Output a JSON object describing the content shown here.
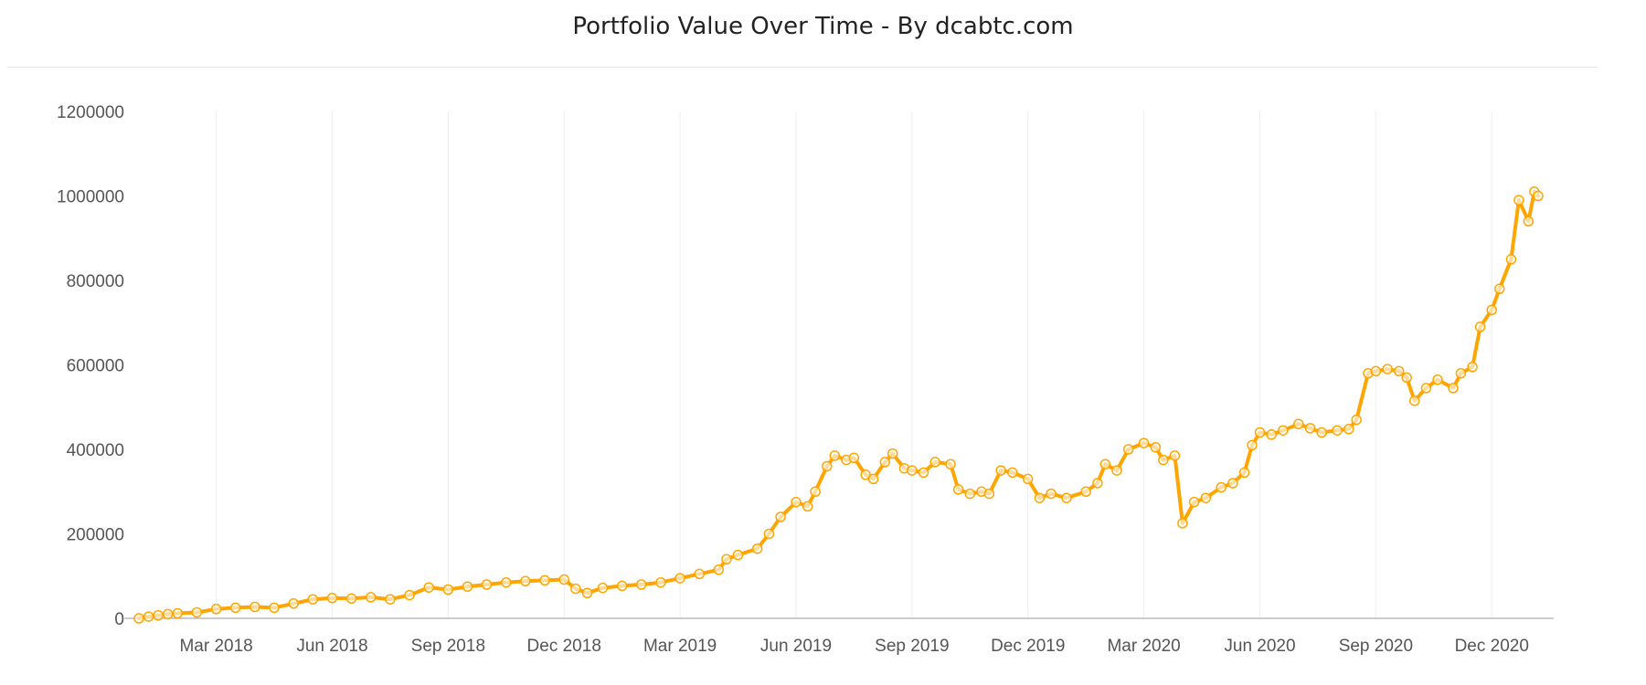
{
  "chart_data": {
    "type": "line",
    "title": "Portfolio Value Over Time - By dcabtc.com",
    "xlabel": "",
    "ylabel": "",
    "ylim": [
      0,
      1200000
    ],
    "y_ticks": [
      "0",
      "200000",
      "400000",
      "600000",
      "800000",
      "1000000",
      "1200000"
    ],
    "y_tick_values": [
      0,
      200000,
      400000,
      600000,
      800000,
      1000000,
      1200000
    ],
    "x_range_months": [
      0,
      36.2
    ],
    "x_ticks": [
      {
        "label": "Mar 2018",
        "month": 2
      },
      {
        "label": "Jun 2018",
        "month": 5
      },
      {
        "label": "Sep 2018",
        "month": 8
      },
      {
        "label": "Dec 2018",
        "month": 11
      },
      {
        "label": "Mar 2019",
        "month": 14
      },
      {
        "label": "Jun 2019",
        "month": 17
      },
      {
        "label": "Sep 2019",
        "month": 20
      },
      {
        "label": "Dec 2019",
        "month": 23
      },
      {
        "label": "Mar 2020",
        "month": 26
      },
      {
        "label": "Jun 2020",
        "month": 29
      },
      {
        "label": "Sep 2020",
        "month": 32
      },
      {
        "label": "Dec 2020",
        "month": 35
      }
    ],
    "grid": "vertical",
    "legend": "none",
    "series": [
      {
        "name": "Portfolio Value",
        "color": "#FFA500",
        "points": [
          [
            0.0,
            0
          ],
          [
            0.25,
            4000
          ],
          [
            0.5,
            7000
          ],
          [
            0.75,
            10000
          ],
          [
            1.0,
            12000
          ],
          [
            1.5,
            14000
          ],
          [
            2.0,
            22000
          ],
          [
            2.5,
            25000
          ],
          [
            3.0,
            27000
          ],
          [
            3.5,
            25000
          ],
          [
            4.0,
            35000
          ],
          [
            4.5,
            45000
          ],
          [
            5.0,
            48000
          ],
          [
            5.5,
            47000
          ],
          [
            6.0,
            50000
          ],
          [
            6.5,
            45000
          ],
          [
            7.0,
            55000
          ],
          [
            7.5,
            73000
          ],
          [
            8.0,
            68000
          ],
          [
            8.5,
            75000
          ],
          [
            9.0,
            80000
          ],
          [
            9.5,
            85000
          ],
          [
            10.0,
            88000
          ],
          [
            10.5,
            90000
          ],
          [
            11.0,
            92000
          ],
          [
            11.3,
            70000
          ],
          [
            11.6,
            60000
          ],
          [
            12.0,
            72000
          ],
          [
            12.5,
            77000
          ],
          [
            13.0,
            80000
          ],
          [
            13.5,
            85000
          ],
          [
            14.0,
            95000
          ],
          [
            14.5,
            105000
          ],
          [
            15.0,
            115000
          ],
          [
            15.2,
            140000
          ],
          [
            15.5,
            150000
          ],
          [
            16.0,
            165000
          ],
          [
            16.3,
            200000
          ],
          [
            16.6,
            240000
          ],
          [
            17.0,
            275000
          ],
          [
            17.3,
            265000
          ],
          [
            17.5,
            300000
          ],
          [
            17.8,
            360000
          ],
          [
            18.0,
            385000
          ],
          [
            18.3,
            375000
          ],
          [
            18.5,
            380000
          ],
          [
            18.8,
            340000
          ],
          [
            19.0,
            330000
          ],
          [
            19.3,
            370000
          ],
          [
            19.5,
            390000
          ],
          [
            19.8,
            355000
          ],
          [
            20.0,
            350000
          ],
          [
            20.3,
            345000
          ],
          [
            20.6,
            370000
          ],
          [
            21.0,
            365000
          ],
          [
            21.2,
            305000
          ],
          [
            21.5,
            295000
          ],
          [
            21.8,
            300000
          ],
          [
            22.0,
            295000
          ],
          [
            22.3,
            350000
          ],
          [
            22.6,
            345000
          ],
          [
            23.0,
            330000
          ],
          [
            23.3,
            285000
          ],
          [
            23.6,
            295000
          ],
          [
            24.0,
            285000
          ],
          [
            24.5,
            300000
          ],
          [
            24.8,
            320000
          ],
          [
            25.0,
            365000
          ],
          [
            25.3,
            350000
          ],
          [
            25.6,
            400000
          ],
          [
            26.0,
            415000
          ],
          [
            26.3,
            405000
          ],
          [
            26.5,
            375000
          ],
          [
            26.8,
            385000
          ],
          [
            27.0,
            225000
          ],
          [
            27.3,
            275000
          ],
          [
            27.6,
            285000
          ],
          [
            28.0,
            310000
          ],
          [
            28.3,
            320000
          ],
          [
            28.6,
            345000
          ],
          [
            28.8,
            410000
          ],
          [
            29.0,
            440000
          ],
          [
            29.3,
            435000
          ],
          [
            29.6,
            445000
          ],
          [
            30.0,
            460000
          ],
          [
            30.3,
            450000
          ],
          [
            30.6,
            440000
          ],
          [
            31.0,
            445000
          ],
          [
            31.3,
            448000
          ],
          [
            31.5,
            470000
          ],
          [
            31.8,
            580000
          ],
          [
            32.0,
            585000
          ],
          [
            32.3,
            590000
          ],
          [
            32.6,
            585000
          ],
          [
            32.8,
            570000
          ],
          [
            33.0,
            515000
          ],
          [
            33.3,
            545000
          ],
          [
            33.6,
            565000
          ],
          [
            34.0,
            545000
          ],
          [
            34.2,
            580000
          ],
          [
            34.5,
            595000
          ],
          [
            34.7,
            690000
          ],
          [
            35.0,
            730000
          ],
          [
            35.2,
            780000
          ],
          [
            35.5,
            850000
          ],
          [
            35.7,
            990000
          ],
          [
            35.95,
            940000
          ],
          [
            36.1,
            1010000
          ],
          [
            36.2,
            1000000
          ]
        ]
      }
    ]
  }
}
